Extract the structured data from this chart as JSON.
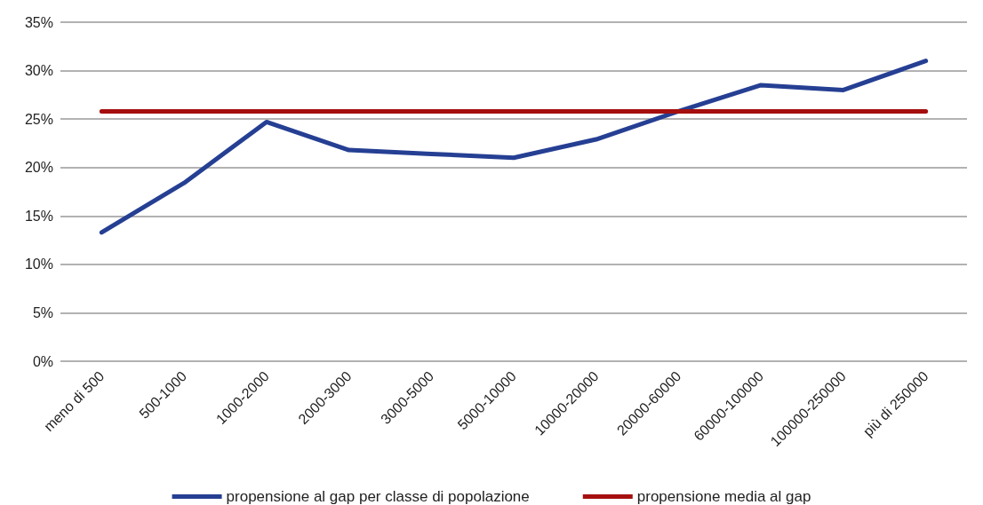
{
  "chart_data": {
    "type": "line",
    "categories": [
      "meno di 500",
      "500-1000",
      "1000-2000",
      "2000-3000",
      "3000-5000",
      "5000-10000",
      "10000-20000",
      "20000-60000",
      "60000-100000",
      "100000-250000",
      "più di 250000"
    ],
    "series": [
      {
        "name": "propensione al gap per classe di popolazione",
        "color": "#253f93",
        "values": [
          13.3,
          18.4,
          24.7,
          21.8,
          21.4,
          21.0,
          22.9,
          25.8,
          28.5,
          28.0,
          31.0
        ]
      },
      {
        "name": "propensione media al gap",
        "color": "#a50f0f",
        "values": [
          25.8,
          25.8,
          25.8,
          25.8,
          25.8,
          25.8,
          25.8,
          25.8,
          25.8,
          25.8,
          25.8
        ]
      }
    ],
    "ylim": [
      0,
      35
    ],
    "yticks": [
      {
        "value": 0,
        "label": "0%"
      },
      {
        "value": 5,
        "label": "5%"
      },
      {
        "value": 10,
        "label": "10%"
      },
      {
        "value": 15,
        "label": "15%"
      },
      {
        "value": 20,
        "label": "20%"
      },
      {
        "value": 25,
        "label": "25%"
      },
      {
        "value": 30,
        "label": "30%"
      },
      {
        "value": 35,
        "label": "35%"
      }
    ],
    "grid": "y",
    "legend": "bottom",
    "marker": "none",
    "line_style": "solid"
  }
}
